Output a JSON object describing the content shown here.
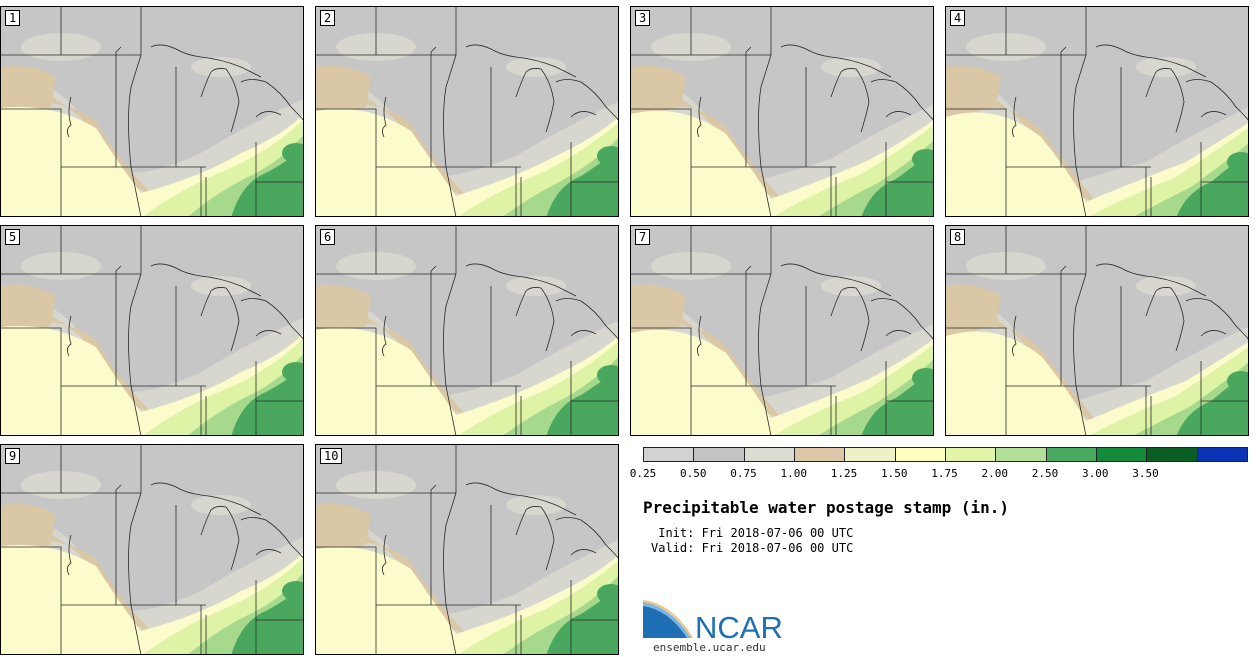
{
  "panels": [
    "1",
    "2",
    "3",
    "4",
    "5",
    "6",
    "7",
    "8",
    "9",
    "10"
  ],
  "legend": {
    "ticks": [
      "0.25",
      "0.50",
      "0.75",
      "1.00",
      "1.25",
      "1.50",
      "1.75",
      "2.00",
      "2.50",
      "3.00",
      "3.50"
    ],
    "colors": [
      "#d2d2d2",
      "#c3c3c3",
      "#dcdcd0",
      "#dcc8a8",
      "#f0f0c8",
      "#ffffc0",
      "#e2f4a8",
      "#b2e098",
      "#4aab60",
      "#148b3a",
      "#0a5e24",
      "#0a32b4"
    ]
  },
  "title": "Precipitable water postage stamp (in.)",
  "init": " Init: Fri 2018-07-06 00 UTC",
  "valid": "Valid: Fri 2018-07-06 00 UTC",
  "logo": {
    "name": "NCAR",
    "url": "ensemble.ucar.edu"
  },
  "map_colors": {
    "gray": "#c6c6c6",
    "lightgray": "#d7d7cf",
    "tan": "#d9c7a6",
    "yellow": "#fbfbcb",
    "lightgreen": "#dff3a7",
    "green": "#a6d98c",
    "darkgreen": "#4aa85e",
    "border": "#2a2a2a"
  }
}
